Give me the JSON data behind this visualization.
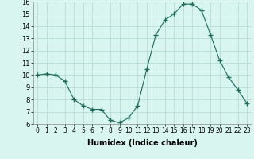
{
  "x": [
    0,
    1,
    2,
    3,
    4,
    5,
    6,
    7,
    8,
    9,
    10,
    11,
    12,
    13,
    14,
    15,
    16,
    17,
    18,
    19,
    20,
    21,
    22,
    23
  ],
  "y": [
    10.0,
    10.1,
    10.0,
    9.5,
    8.0,
    7.5,
    7.2,
    7.2,
    6.3,
    6.1,
    6.5,
    7.5,
    10.5,
    13.3,
    14.5,
    15.0,
    15.8,
    15.8,
    15.3,
    13.3,
    11.2,
    9.8,
    8.8,
    7.7
  ],
  "line_color": "#1a6b5a",
  "marker": "+",
  "marker_size": 4,
  "bg_color": "#d8f5f0",
  "grid_color": "#b0d8d0",
  "xlabel": "Humidex (Indice chaleur)",
  "xlabel_fontsize": 7,
  "tick_fontsize": 6,
  "ylim": [
    6,
    16
  ],
  "xlim": [
    -0.5,
    23.5
  ],
  "yticks": [
    6,
    7,
    8,
    9,
    10,
    11,
    12,
    13,
    14,
    15,
    16
  ],
  "xticks": [
    0,
    1,
    2,
    3,
    4,
    5,
    6,
    7,
    8,
    9,
    10,
    11,
    12,
    13,
    14,
    15,
    16,
    17,
    18,
    19,
    20,
    21,
    22,
    23
  ]
}
